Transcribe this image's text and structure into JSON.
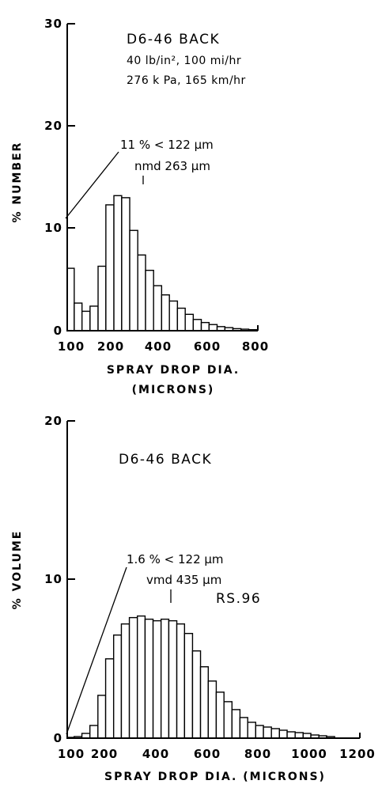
{
  "chart_data": [
    {
      "type": "bar",
      "title": "D6-46 BACK",
      "subtitle_lines": [
        "40 lb/in², 100 mi/hr",
        "276 k Pa, 165 km/hr"
      ],
      "xlabel_lines": [
        "SPRAY DROP DIA.",
        "(MICRONS)"
      ],
      "ylabel": "% NUMBER",
      "x_ticks": [
        "100",
        "200",
        "400",
        "600",
        "800"
      ],
      "y_ticks": [
        "0",
        "10",
        "20",
        "30"
      ],
      "xlim": [
        65,
        800
      ],
      "ylim": [
        0,
        30
      ],
      "bin_edges": [
        65,
        92,
        122,
        153,
        184,
        214,
        245,
        275,
        306,
        337,
        367,
        398,
        429,
        459,
        490,
        520,
        551,
        582,
        612,
        643,
        673,
        704,
        735,
        765,
        796
      ],
      "values": [
        6.1,
        2.7,
        1.9,
        2.4,
        6.3,
        12.3,
        13.2,
        13.0,
        9.8,
        7.4,
        5.9,
        4.4,
        3.5,
        2.9,
        2.2,
        1.6,
        1.1,
        0.8,
        0.6,
        0.4,
        0.3,
        0.2,
        0.15,
        0.1
      ],
      "annotations": {
        "pct_below": "11 % < 122 μm",
        "median": "nmd 263 μm"
      },
      "median_value": 263,
      "pct_below_value": 11
    },
    {
      "type": "bar",
      "title": "D6-46 BACK",
      "xlabel": "SPRAY DROP DIA. (MICRONS)",
      "ylabel": "% VOLUME",
      "x_ticks": [
        "100",
        "200",
        "400",
        "600",
        "800",
        "1000",
        "1200"
      ],
      "y_ticks": [
        "0",
        "10",
        "20"
      ],
      "xlim": [
        65,
        1200
      ],
      "ylim": [
        0,
        20
      ],
      "bin_edges": [
        65,
        92,
        122,
        153,
        184,
        214,
        245,
        275,
        306,
        337,
        367,
        398,
        429,
        459,
        490,
        520,
        551,
        582,
        612,
        643,
        673,
        704,
        735,
        765,
        796,
        826,
        857,
        888,
        918,
        949,
        980,
        1010,
        1041,
        1071,
        1102
      ],
      "values": [
        0.05,
        0.1,
        0.3,
        0.8,
        2.7,
        5.0,
        6.5,
        7.2,
        7.6,
        7.7,
        7.5,
        7.4,
        7.5,
        7.4,
        7.2,
        6.6,
        5.5,
        4.5,
        3.6,
        2.9,
        2.3,
        1.8,
        1.3,
        1.0,
        0.8,
        0.7,
        0.6,
        0.5,
        0.4,
        0.35,
        0.3,
        0.2,
        0.15,
        0.1
      ],
      "annotations": {
        "pct_below": "1.6 % < 122 μm",
        "median": "vmd 435 μm",
        "code": "RS.96"
      },
      "median_value": 435,
      "pct_below_value": 1.6
    }
  ]
}
